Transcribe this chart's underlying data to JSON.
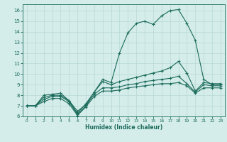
{
  "bg_color": "#d4ecea",
  "grid_color": "#b8d8d5",
  "line_color": "#1a6b5a",
  "xlabel": "Humidex (Indice chaleur)",
  "xlim": [
    -0.5,
    23.5
  ],
  "ylim": [
    6.0,
    16.6
  ],
  "yticks": [
    6,
    7,
    8,
    9,
    10,
    11,
    12,
    13,
    14,
    15,
    16
  ],
  "xticks": [
    0,
    1,
    2,
    3,
    4,
    5,
    6,
    7,
    8,
    9,
    10,
    11,
    12,
    13,
    14,
    15,
    16,
    17,
    18,
    19,
    20,
    21,
    22,
    23
  ],
  "line1_y": [
    7.0,
    7.0,
    8.0,
    8.1,
    8.2,
    7.5,
    6.5,
    7.1,
    8.3,
    9.5,
    9.2,
    12.0,
    13.9,
    14.8,
    15.0,
    14.7,
    15.5,
    16.0,
    16.1,
    14.8,
    13.2,
    9.5,
    9.0,
    9.0
  ],
  "line2_y": [
    7.0,
    7.0,
    7.8,
    8.0,
    8.0,
    7.5,
    6.3,
    7.2,
    8.3,
    9.3,
    9.0,
    9.3,
    9.5,
    9.7,
    9.9,
    10.1,
    10.3,
    10.6,
    11.2,
    10.1,
    8.4,
    9.2,
    9.1,
    9.1
  ],
  "line3_y": [
    7.0,
    7.0,
    7.6,
    7.9,
    7.9,
    7.4,
    6.2,
    7.0,
    8.1,
    8.7,
    8.7,
    8.8,
    9.0,
    9.1,
    9.3,
    9.4,
    9.5,
    9.6,
    9.8,
    9.1,
    8.3,
    9.0,
    8.9,
    8.9
  ],
  "line4_y": [
    7.0,
    7.0,
    7.4,
    7.7,
    7.7,
    7.2,
    6.1,
    6.9,
    7.9,
    8.4,
    8.4,
    8.5,
    8.7,
    8.8,
    8.9,
    9.0,
    9.1,
    9.1,
    9.2,
    8.9,
    8.2,
    8.7,
    8.7,
    8.7
  ]
}
